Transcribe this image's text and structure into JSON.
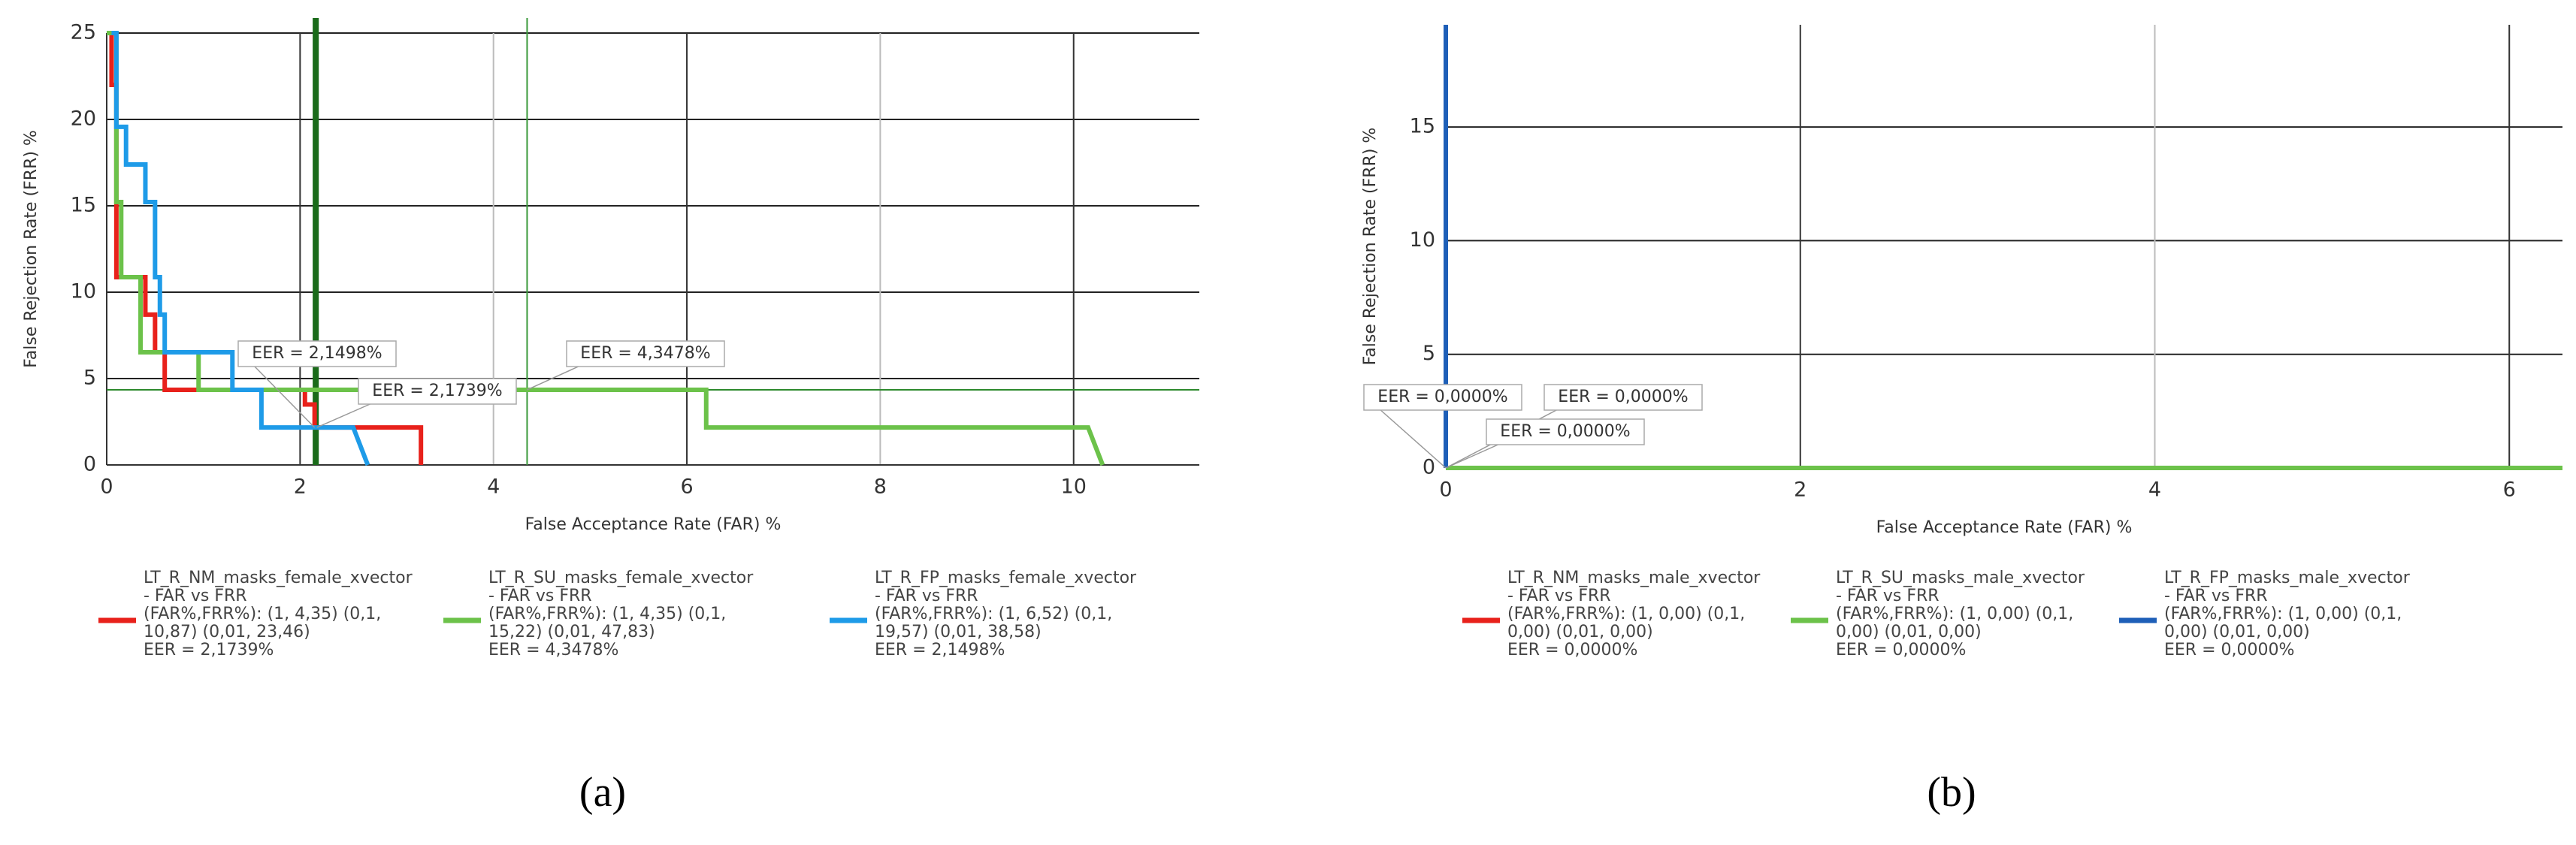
{
  "chart_data": [
    {
      "type": "line",
      "panel_label": "(a)",
      "xlabel": "False Acceptance Rate (FAR) %",
      "ylabel": "False Rejection Rate (FRR) %",
      "xlim": [
        0,
        11.3
      ],
      "ylim": [
        0,
        25
      ],
      "xticks": [
        0,
        2,
        4,
        6,
        8,
        10
      ],
      "yticks": [
        0,
        5,
        10,
        15,
        20,
        25
      ],
      "grid": true,
      "vlines": [
        2.1498,
        2.1739,
        4.3478
      ],
      "hlines": [
        4.3478
      ],
      "series": [
        {
          "name": "LT_R_NM_masks_female_xvector",
          "subtitle": "- FAR vs FRR",
          "details": [
            "(FAR%,FRR%): (1, 4,35) (0,1,",
            "10,87) (0,01, 23,46)",
            "EER = 2,1739%"
          ],
          "color": "#e8211b",
          "x": [
            0,
            0.05,
            0.05,
            0.1,
            0.1,
            0.4,
            0.4,
            0.5,
            0.5,
            0.6,
            0.6,
            0.9,
            0.9,
            2.05,
            2.05,
            2.15,
            2.15,
            3.25,
            3.25
          ],
          "values": [
            25,
            25,
            22,
            22,
            10.87,
            10.87,
            8.7,
            8.7,
            6.52,
            6.52,
            4.35,
            4.35,
            4.35,
            4.35,
            3.5,
            3.5,
            2.17,
            2.17,
            0
          ]
        },
        {
          "name": "LT_R_SU_masks_female_xvector",
          "subtitle": "- FAR vs FRR",
          "details": [
            "(FAR%,FRR%): (1, 4,35) (0,1,",
            "15,22) (0,01, 47,83)",
            "EER = 4,3478%"
          ],
          "color": "#6cc24a",
          "x": [
            0,
            0.1,
            0.1,
            0.15,
            0.15,
            0.35,
            0.35,
            0.95,
            0.95,
            6.2,
            6.2,
            10.15,
            10.3
          ],
          "values": [
            25,
            25,
            15.22,
            15.22,
            10.87,
            10.87,
            6.52,
            6.52,
            4.35,
            4.35,
            2.17,
            2.17,
            0
          ]
        },
        {
          "name": "LT_R_FP_masks_female_xvector",
          "subtitle": "- FAR vs FRR",
          "details": [
            "(FAR%,FRR%): (1, 6,52) (0,1,",
            "19,57) (0,01, 38,58)",
            "EER = 2,1498%"
          ],
          "color": "#1e9be8",
          "x": [
            0.05,
            0.1,
            0.1,
            0.2,
            0.2,
            0.4,
            0.4,
            0.5,
            0.5,
            0.55,
            0.55,
            0.6,
            0.6,
            1.3,
            1.3,
            1.6,
            1.6,
            2.55,
            2.7
          ],
          "values": [
            25,
            25,
            19.57,
            19.57,
            17.39,
            17.39,
            15.22,
            15.22,
            10.87,
            10.87,
            8.7,
            8.7,
            6.52,
            6.52,
            4.35,
            4.35,
            2.17,
            2.17,
            0
          ]
        }
      ],
      "annotations": [
        {
          "text": "EER = 2,1498%",
          "at": [
            2.1498,
            2.17
          ]
        },
        {
          "text": "EER = 2,1739%",
          "at": [
            2.1739,
            2.17
          ]
        },
        {
          "text": "EER = 4,3478%",
          "at": [
            4.3478,
            4.35
          ]
        }
      ]
    },
    {
      "type": "line",
      "panel_label": "(b)",
      "xlabel": "False Acceptance Rate (FAR) %",
      "ylabel": "False Rejection Rate (FRR) %",
      "xlim": [
        0,
        6.3
      ],
      "ylim": [
        0,
        19.5
      ],
      "xticks": [
        0,
        2,
        4,
        6
      ],
      "yticks": [
        0,
        5,
        10,
        15
      ],
      "grid": true,
      "vlines": [],
      "hlines": [],
      "series": [
        {
          "name": "LT_R_NM_masks_male_xvector",
          "subtitle": "- FAR vs FRR",
          "details": [
            "(FAR%,FRR%): (1, 0,00) (0,1,",
            "0,00) (0,01, 0,00)",
            "EER = 0,0000%"
          ],
          "color": "#e8211b",
          "x": [
            0,
            6.3
          ],
          "values": [
            0,
            0
          ]
        },
        {
          "name": "LT_R_SU_masks_male_xvector",
          "subtitle": "- FAR vs FRR",
          "details": [
            "(FAR%,FRR%): (1, 0,00) (0,1,",
            "0,00) (0,01, 0,00)",
            "EER = 0,0000%"
          ],
          "color": "#6cc24a",
          "x": [
            0,
            6.3
          ],
          "values": [
            0,
            0
          ]
        },
        {
          "name": "LT_R_FP_masks_male_xvector",
          "subtitle": "- FAR vs FRR",
          "details": [
            "(FAR%,FRR%): (1, 0,00) (0,1,",
            "0,00) (0,01, 0,00)",
            "EER = 0,0000%"
          ],
          "color": "#1e5fb8",
          "x": [
            0,
            0
          ],
          "values": [
            0,
            19.5
          ]
        }
      ],
      "annotations": [
        {
          "text": "EER = 0,0000%",
          "at": [
            0,
            0
          ]
        },
        {
          "text": "EER = 0,0000%",
          "at": [
            0,
            0
          ]
        },
        {
          "text": "EER = 0,0000%",
          "at": [
            0,
            0
          ]
        }
      ]
    }
  ]
}
